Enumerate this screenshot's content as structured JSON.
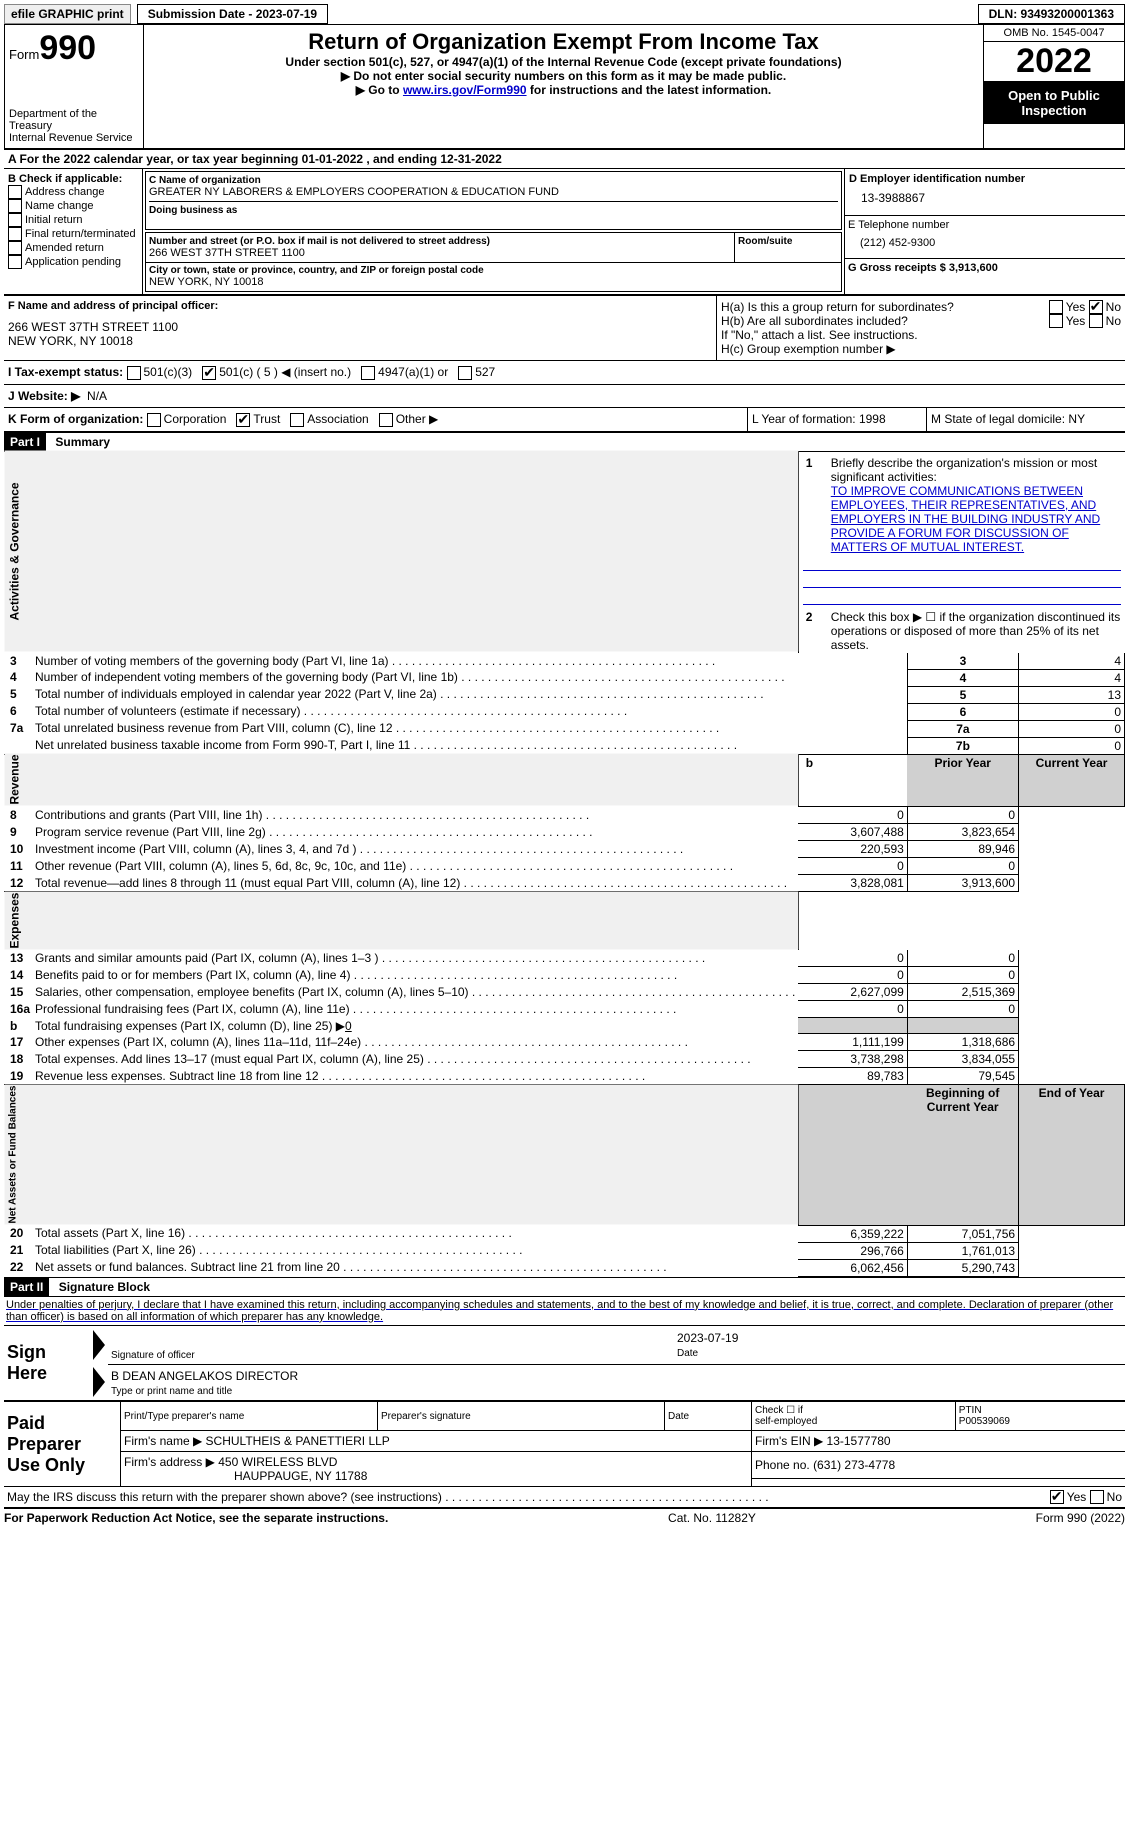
{
  "efile": {
    "print_label": "efile GRAPHIC print",
    "submission_label": "Submission Date - 2023-07-19",
    "dln": "DLN: 93493200001363"
  },
  "header": {
    "form_word": "Form",
    "form_num": "990",
    "dept": "Department of the Treasury",
    "irs": "Internal Revenue Service",
    "title": "Return of Organization Exempt From Income Tax",
    "subtitle": "Under section 501(c), 527, or 4947(a)(1) of the Internal Revenue Code (except private foundations)",
    "warn1": "▶ Do not enter social security numbers on this form as it may be made public.",
    "warn2_pre": "▶ Go to ",
    "warn2_link": "www.irs.gov/Form990",
    "warn2_post": " for instructions and the latest information.",
    "omb": "OMB No. 1545-0047",
    "year": "2022",
    "open": "Open to Public Inspection"
  },
  "row_a": "A For the 2022 calendar year, or tax year beginning 01-01-2022     , and ending 12-31-2022",
  "section_b": {
    "label": "B Check if applicable:",
    "items": [
      "Address change",
      "Name change",
      "Initial return",
      "Final return/terminated",
      "Amended return",
      "Application pending"
    ]
  },
  "section_c": {
    "name_label": "C Name of organization",
    "name": "GREATER NY LABORERS & EMPLOYERS COOPERATION & EDUCATION FUND",
    "dba_label": "Doing business as",
    "street_label": "Number and street (or P.O. box if mail is not delivered to street address)",
    "room_label": "Room/suite",
    "street": "266 WEST 37TH STREET 1100",
    "city_label": "City or town, state or province, country, and ZIP or foreign postal code",
    "city": "NEW YORK, NY  10018"
  },
  "section_d": {
    "label": "D Employer identification number",
    "value": "13-3988867"
  },
  "section_e": {
    "label": "E Telephone number",
    "value": "(212) 452-9300"
  },
  "section_g": {
    "label": "G Gross receipts $ 3,913,600"
  },
  "section_f": {
    "label": "F Name and address of principal officer:",
    "line1": "266 WEST 37TH STREET 1100",
    "line2": "NEW YORK, NY  10018"
  },
  "section_h": {
    "a": "H(a)  Is this a group return for subordinates?",
    "a_no": "No",
    "a_yes": "Yes",
    "b": "H(b)  Are all subordinates included?",
    "b_yes": "Yes",
    "b_no": "No",
    "b_note": "If \"No,\" attach a list. See instructions.",
    "c": "H(c)  Group exemption number ▶"
  },
  "section_i": {
    "label": "I   Tax-exempt status:",
    "c3": "501(c)(3)",
    "c": "501(c) ( 5 ) ◀ (insert no.)",
    "a1": "4947(a)(1) or",
    "s527": "527"
  },
  "section_j": {
    "label": "J   Website: ▶",
    "value": "N/A"
  },
  "section_k": {
    "label": "K Form of organization:",
    "corp": "Corporation",
    "trust": "Trust",
    "assoc": "Association",
    "other": "Other ▶"
  },
  "section_l": {
    "text": "L Year of formation: 1998"
  },
  "section_m": {
    "text": "M State of legal domicile: NY"
  },
  "part1": {
    "num": "Part I",
    "title": "Summary"
  },
  "summary": {
    "q1": "Briefly describe the organization's mission or most significant activities:",
    "mission": "TO IMPROVE COMMUNICATIONS BETWEEN EMPLOYEES, THEIR REPRESENTATIVES, AND EMPLOYERS IN THE BUILDING INDUSTRY AND PROVIDE A FORUM FOR DISCUSSION OF MATTERS OF MUTUAL INTEREST.",
    "q2": "Check this box ▶ ☐  if the organization discontinued its operations or disposed of more than 25% of its net assets.",
    "side_labels": {
      "ag": "Activities & Governance",
      "rev": "Revenue",
      "exp": "Expenses",
      "net": "Net Assets or Fund Balances"
    },
    "rows_single": [
      {
        "n": "3",
        "t": "Number of voting members of the governing body (Part VI, line 1a)",
        "box": "3",
        "v": "4"
      },
      {
        "n": "4",
        "t": "Number of independent voting members of the governing body (Part VI, line 1b)",
        "box": "4",
        "v": "4"
      },
      {
        "n": "5",
        "t": "Total number of individuals employed in calendar year 2022 (Part V, line 2a)",
        "box": "5",
        "v": "13"
      },
      {
        "n": "6",
        "t": "Total number of volunteers (estimate if necessary)",
        "box": "6",
        "v": "0"
      },
      {
        "n": "7a",
        "t": "Total unrelated business revenue from Part VIII, column (C), line 12",
        "box": "7a",
        "v": "0"
      },
      {
        "n": "",
        "t": "Net unrelated business taxable income from Form 990-T, Part I, line 11",
        "box": "7b",
        "v": "0"
      }
    ],
    "col_headers": {
      "b": "b",
      "prior": "Prior Year",
      "current": "Current Year"
    },
    "rows_dual": [
      {
        "n": "8",
        "t": "Contributions and grants (Part VIII, line 1h)",
        "p": "0",
        "c": "0"
      },
      {
        "n": "9",
        "t": "Program service revenue (Part VIII, line 2g)",
        "p": "3,607,488",
        "c": "3,823,654"
      },
      {
        "n": "10",
        "t": "Investment income (Part VIII, column (A), lines 3, 4, and 7d )",
        "p": "220,593",
        "c": "89,946"
      },
      {
        "n": "11",
        "t": "Other revenue (Part VIII, column (A), lines 5, 6d, 8c, 9c, 10c, and 11e)",
        "p": "0",
        "c": "0"
      },
      {
        "n": "12",
        "t": "Total revenue—add lines 8 through 11 (must equal Part VIII, column (A), line 12)",
        "p": "3,828,081",
        "c": "3,913,600"
      },
      {
        "n": "13",
        "t": "Grants and similar amounts paid (Part IX, column (A), lines 1–3 )",
        "p": "0",
        "c": "0"
      },
      {
        "n": "14",
        "t": "Benefits paid to or for members (Part IX, column (A), line 4)",
        "p": "0",
        "c": "0"
      },
      {
        "n": "15",
        "t": "Salaries, other compensation, employee benefits (Part IX, column (A), lines 5–10)",
        "p": "2,627,099",
        "c": "2,515,369"
      },
      {
        "n": "16a",
        "t": "Professional fundraising fees (Part IX, column (A), line 11e)",
        "p": "0",
        "c": "0"
      },
      {
        "n": "b",
        "t": "Total fundraising expenses (Part IX, column (D), line 25) ▶0",
        "p": "",
        "c": "",
        "shade": true,
        "underline": true
      },
      {
        "n": "17",
        "t": "Other expenses (Part IX, column (A), lines 11a–11d, 11f–24e)",
        "p": "1,111,199",
        "c": "1,318,686"
      },
      {
        "n": "18",
        "t": "Total expenses. Add lines 13–17 (must equal Part IX, column (A), line 25)",
        "p": "3,738,298",
        "c": "3,834,055"
      },
      {
        "n": "19",
        "t": "Revenue less expenses. Subtract line 18 from line 12",
        "p": "89,783",
        "c": "79,545"
      }
    ],
    "col_headers2": {
      "beg": "Beginning of Current Year",
      "end": "End of Year"
    },
    "rows_net": [
      {
        "n": "20",
        "t": "Total assets (Part X, line 16)",
        "p": "6,359,222",
        "c": "7,051,756"
      },
      {
        "n": "21",
        "t": "Total liabilities (Part X, line 26)",
        "p": "296,766",
        "c": "1,761,013"
      },
      {
        "n": "22",
        "t": "Net assets or fund balances. Subtract line 21 from line 20",
        "p": "6,062,456",
        "c": "5,290,743"
      }
    ]
  },
  "part2": {
    "num": "Part II",
    "title": "Signature Block"
  },
  "penalties": "Under penalties of perjury, I declare that I have examined this return, including accompanying schedules and statements, and to the best of my knowledge and belief, it is true, correct, and complete. Declaration of preparer (other than officer) is based on all information of which preparer has any knowledge.",
  "sign": {
    "here": "Sign Here",
    "sig_officer": "Signature of officer",
    "date_label": "Date",
    "date": "2023-07-19",
    "name": "B DEAN ANGELAKOS  DIRECTOR",
    "name_label": "Type or print name and title"
  },
  "paid": {
    "title": "Paid Preparer Use Only",
    "h1": "Print/Type preparer's name",
    "h2": "Preparer's signature",
    "h3": "Date",
    "h4_pre": "Check ☐ if",
    "h4": "self-employed",
    "h5": "PTIN",
    "ptin": "P00539069",
    "firm_label": "Firm's name    ▶",
    "firm": "SCHULTHEIS & PANETTIERI LLP",
    "ein_label": "Firm's EIN ▶",
    "ein": "13-1577780",
    "addr_label": "Firm's address ▶",
    "addr1": "450 WIRELESS BLVD",
    "addr2": "HAUPPAUGE, NY  11788",
    "phone_label": "Phone no.",
    "phone": "(631) 273-4778"
  },
  "discuss": {
    "text": "May the IRS discuss this return with the preparer shown above? (see instructions)",
    "yes": "Yes",
    "no": "No"
  },
  "footer": {
    "left": "For Paperwork Reduction Act Notice, see the separate instructions.",
    "mid": "Cat. No. 11282Y",
    "right": "Form 990 (2022)"
  }
}
